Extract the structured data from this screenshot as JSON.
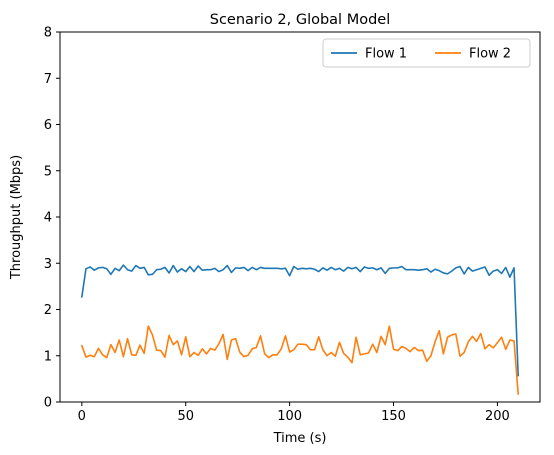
{
  "chart_data": {
    "type": "line",
    "title": "Scenario 2, Global Model",
    "xlabel": "Time (s)",
    "ylabel": "Throughput (Mbps)",
    "xlim": [
      -10.5,
      220.5
    ],
    "ylim": [
      0,
      8
    ],
    "xticks": [
      0,
      50,
      100,
      150,
      200
    ],
    "yticks": [
      0,
      1,
      2,
      3,
      4,
      5,
      6,
      7,
      8
    ],
    "grid": false,
    "legend": {
      "placement": "upper-right",
      "columns": 2
    },
    "series": [
      {
        "name": "Flow 1",
        "color": "#1f77b4",
        "x": [
          0,
          2,
          4,
          6,
          8,
          10,
          12,
          14,
          16,
          18,
          20,
          22,
          24,
          26,
          28,
          30,
          32,
          34,
          36,
          38,
          40,
          42,
          44,
          46,
          48,
          50,
          52,
          54,
          56,
          58,
          60,
          62,
          64,
          66,
          68,
          70,
          72,
          74,
          76,
          78,
          80,
          82,
          84,
          86,
          88,
          90,
          92,
          94,
          96,
          98,
          100,
          102,
          104,
          106,
          108,
          110,
          112,
          114,
          116,
          118,
          120,
          122,
          124,
          126,
          128,
          130,
          132,
          134,
          136,
          138,
          140,
          142,
          144,
          146,
          148,
          150,
          152,
          154,
          156,
          158,
          160,
          162,
          164,
          166,
          168,
          170,
          172,
          174,
          176,
          178,
          180,
          182,
          184,
          186,
          188,
          190,
          192,
          194,
          196,
          198,
          200,
          202,
          204,
          206,
          208,
          210
        ],
        "values": [
          2.27,
          2.88,
          2.92,
          2.85,
          2.9,
          2.91,
          2.88,
          2.76,
          2.89,
          2.84,
          2.96,
          2.86,
          2.83,
          2.95,
          2.89,
          2.91,
          2.75,
          2.76,
          2.86,
          2.87,
          2.91,
          2.79,
          2.95,
          2.81,
          2.88,
          2.82,
          2.93,
          2.82,
          2.94,
          2.85,
          2.86,
          2.86,
          2.89,
          2.82,
          2.86,
          2.95,
          2.8,
          2.9,
          2.89,
          2.91,
          2.84,
          2.91,
          2.86,
          2.91,
          2.89,
          2.89,
          2.89,
          2.89,
          2.88,
          2.89,
          2.73,
          2.93,
          2.87,
          2.89,
          2.88,
          2.89,
          2.87,
          2.82,
          2.9,
          2.85,
          2.91,
          2.86,
          2.89,
          2.83,
          2.91,
          2.88,
          2.91,
          2.82,
          2.92,
          2.89,
          2.9,
          2.86,
          2.9,
          2.78,
          2.89,
          2.9,
          2.9,
          2.93,
          2.86,
          2.86,
          2.86,
          2.85,
          2.86,
          2.88,
          2.81,
          2.87,
          2.84,
          2.79,
          2.77,
          2.83,
          2.9,
          2.93,
          2.77,
          2.91,
          2.83,
          2.86,
          2.89,
          2.92,
          2.74,
          2.83,
          2.86,
          2.78,
          2.91,
          2.7,
          2.9,
          0.57
        ]
      },
      {
        "name": "Flow 2",
        "color": "#ff7f0e",
        "x": [
          0,
          2,
          4,
          6,
          8,
          10,
          12,
          14,
          16,
          18,
          20,
          22,
          24,
          26,
          28,
          30,
          32,
          34,
          36,
          38,
          40,
          42,
          44,
          46,
          48,
          50,
          52,
          54,
          56,
          58,
          60,
          62,
          64,
          66,
          68,
          70,
          72,
          74,
          76,
          78,
          80,
          82,
          84,
          86,
          88,
          90,
          92,
          94,
          96,
          98,
          100,
          102,
          104,
          106,
          108,
          110,
          112,
          114,
          116,
          118,
          120,
          122,
          124,
          126,
          128,
          130,
          132,
          134,
          136,
          138,
          140,
          142,
          144,
          146,
          148,
          150,
          152,
          154,
          156,
          158,
          160,
          162,
          164,
          166,
          168,
          170,
          172,
          174,
          176,
          178,
          180,
          182,
          184,
          186,
          188,
          190,
          192,
          194,
          196,
          198,
          200,
          202,
          204,
          206,
          208,
          210
        ],
        "values": [
          1.22,
          0.97,
          1.01,
          0.98,
          1.16,
          1.02,
          0.96,
          1.24,
          1.07,
          1.34,
          0.98,
          1.37,
          1.02,
          1.01,
          1.23,
          1.05,
          1.64,
          1.45,
          1.12,
          1.11,
          0.97,
          1.44,
          1.24,
          1.32,
          1.02,
          1.41,
          0.98,
          1.07,
          1.01,
          1.15,
          1.04,
          1.16,
          1.12,
          1.26,
          1.46,
          0.92,
          1.34,
          1.37,
          1.08,
          0.98,
          1.01,
          1.15,
          1.18,
          1.43,
          1.04,
          0.96,
          1.02,
          1.02,
          1.15,
          1.43,
          1.08,
          1.13,
          1.25,
          1.25,
          1.24,
          1.13,
          1.13,
          1.41,
          1.13,
          1.0,
          1.07,
          0.99,
          1.29,
          1.05,
          0.97,
          0.85,
          1.4,
          1.02,
          1.04,
          1.06,
          1.25,
          1.07,
          1.42,
          1.24,
          1.64,
          1.14,
          1.11,
          1.2,
          1.16,
          1.09,
          1.18,
          1.11,
          1.12,
          0.88,
          1.0,
          1.3,
          1.54,
          1.04,
          1.4,
          1.45,
          1.47,
          0.99,
          1.07,
          1.3,
          1.42,
          1.31,
          1.48,
          1.15,
          1.24,
          1.17,
          1.28,
          1.4,
          1.14,
          1.34,
          1.32,
          0.17
        ]
      }
    ]
  }
}
